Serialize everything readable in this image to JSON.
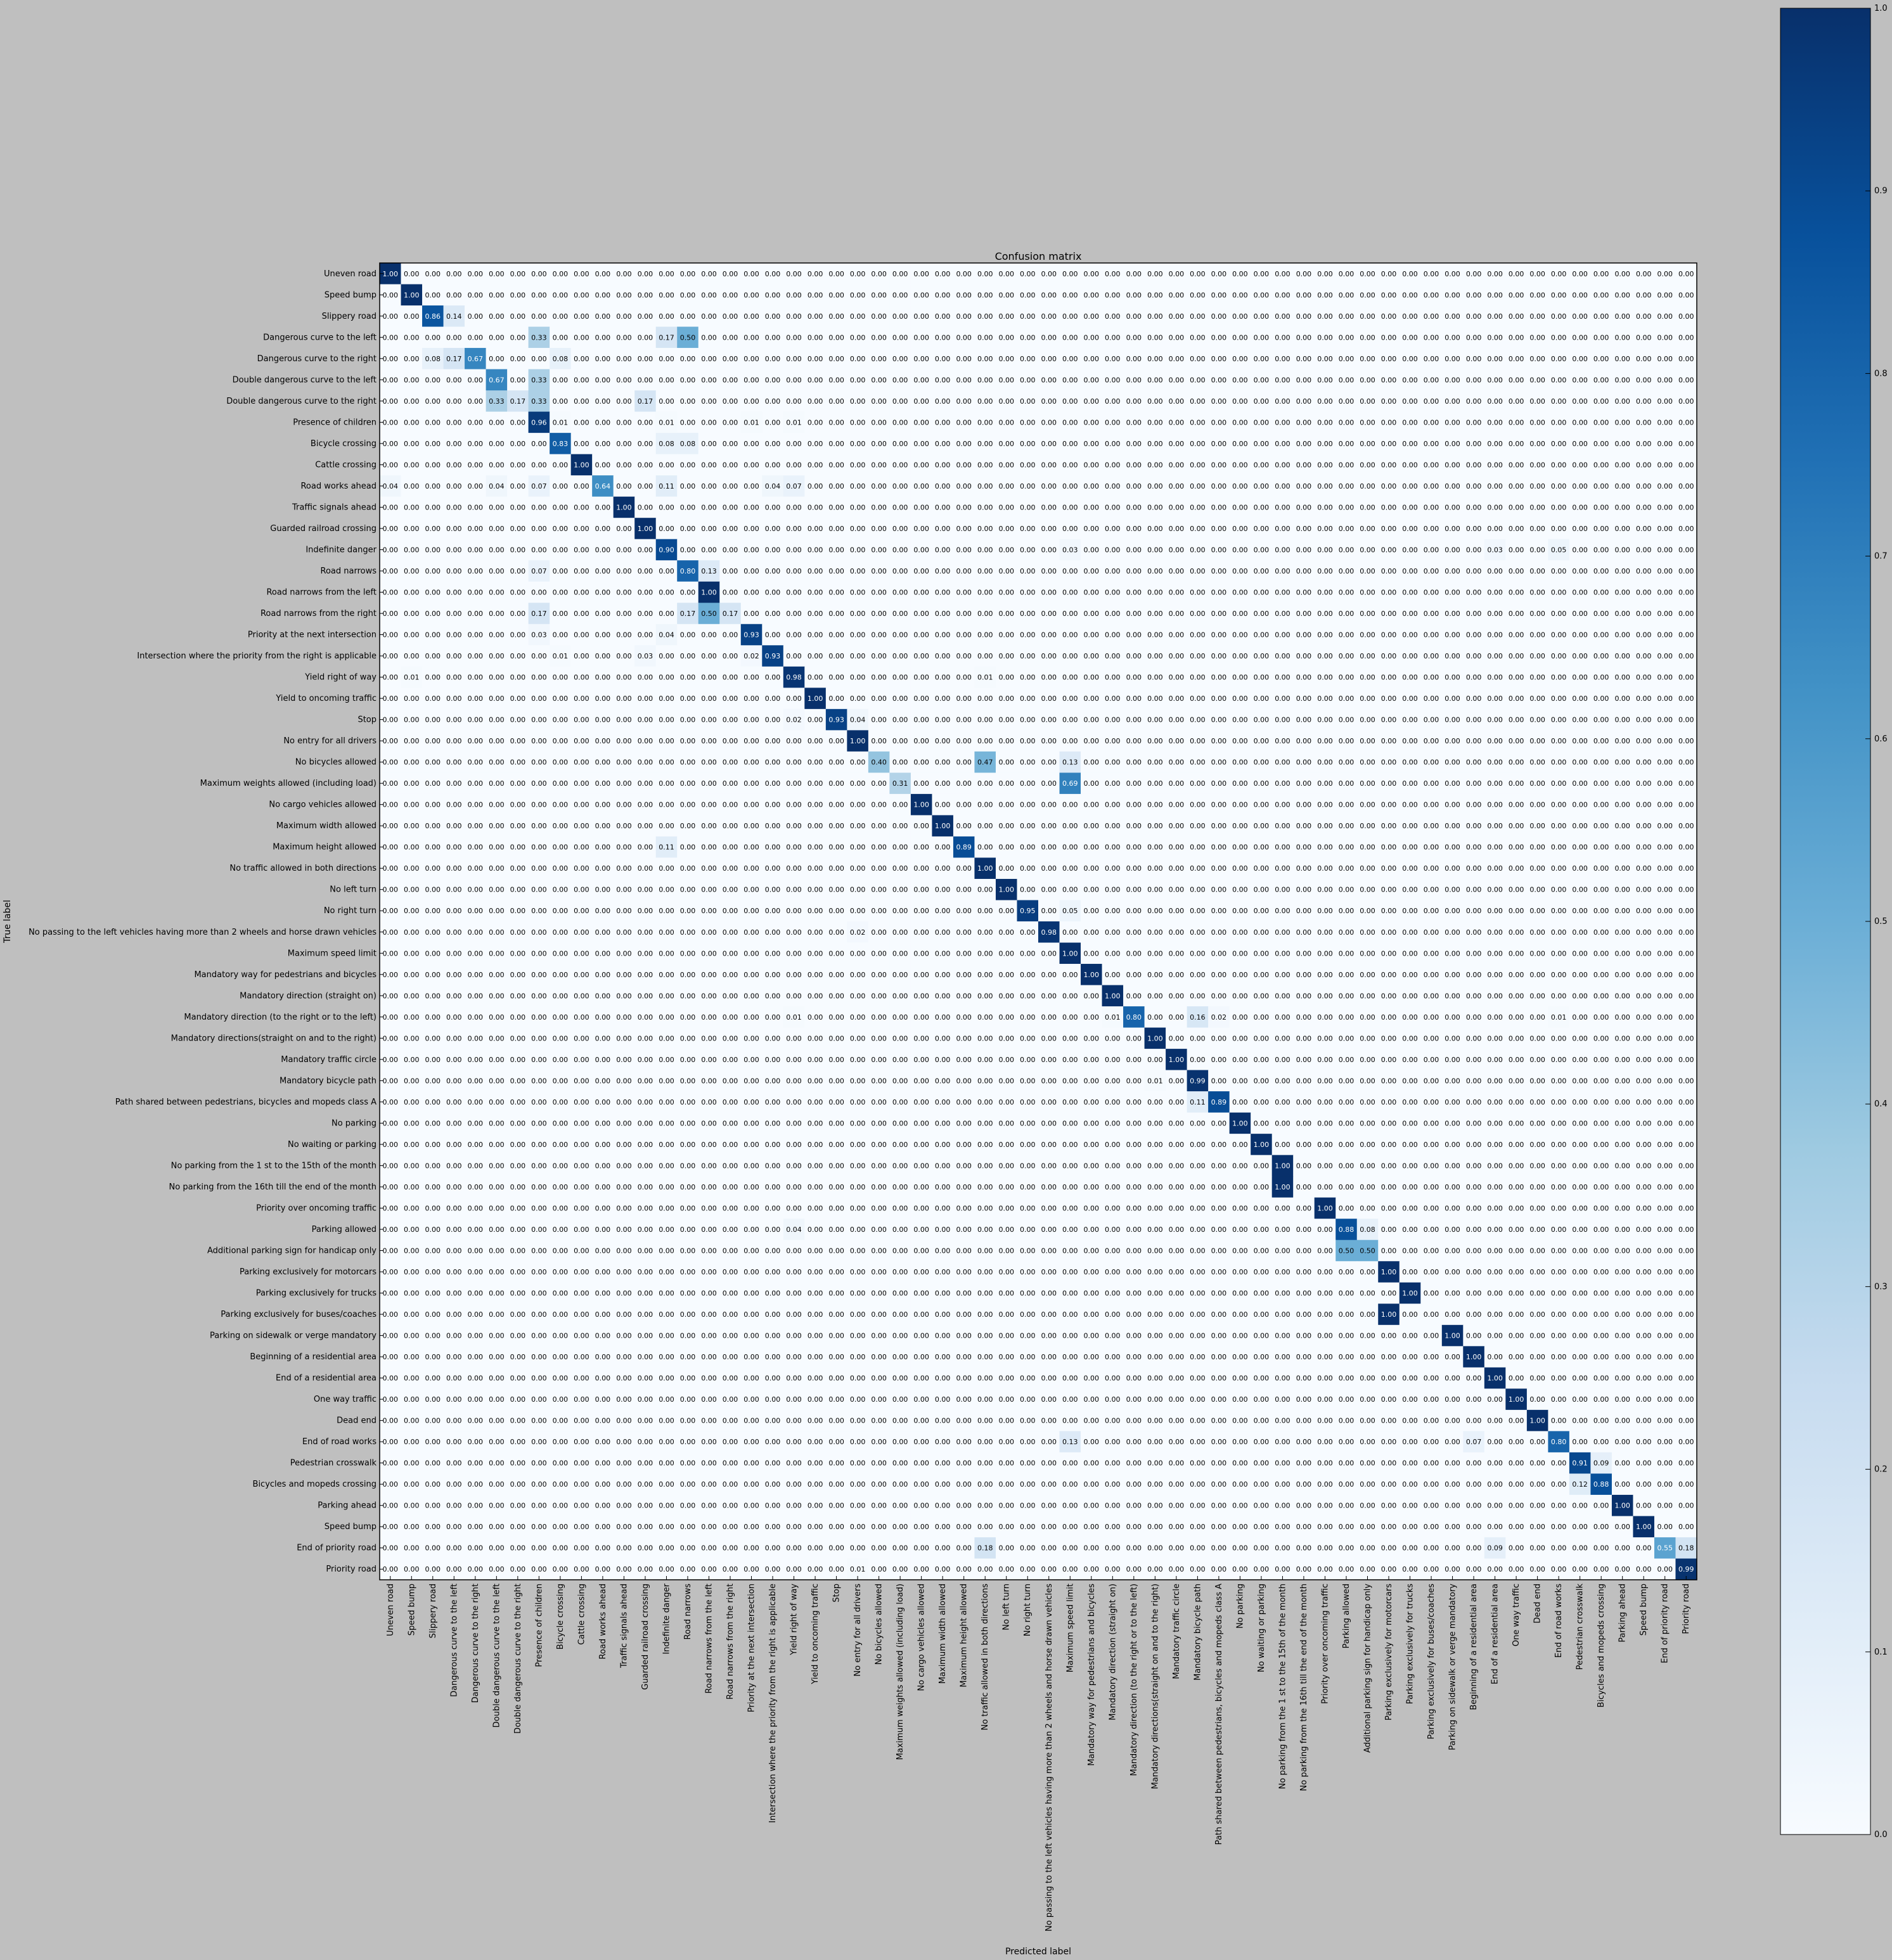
{
  "chart_data": {
    "type": "heatmap",
    "title": "Confusion matrix",
    "xlabel": "Predicted label",
    "ylabel": "True label",
    "value_range": [
      0,
      1
    ],
    "colormap": "Blues",
    "value_format": "0.00",
    "colorbar_ticks": [
      "0.0",
      "0.1",
      "0.2",
      "0.3",
      "0.4",
      "0.5",
      "0.6",
      "0.7",
      "0.8",
      "0.9",
      "1.0"
    ],
    "labels": [
      "Uneven road",
      "Speed bump",
      "Slippery road",
      "Dangerous curve to the left",
      "Dangerous curve to the right",
      "Double dangerous curve to the left",
      "Double dangerous curve to the right",
      "Presence of children",
      "Bicycle crossing",
      "Cattle crossing",
      "Road works ahead",
      "Traffic signals ahead",
      "Guarded railroad crossing",
      "Indefinite danger",
      "Road narrows",
      "Road narrows from the left",
      "Road narrows from the right",
      "Priority at the next intersection",
      "Intersection where the priority from the right is applicable",
      "Yield right of way",
      "Yield to oncoming traffic",
      "Stop",
      "No entry for all drivers",
      "No bicycles allowed",
      "Maximum weights allowed (including load)",
      "No cargo vehicles allowed",
      "Maximum width allowed",
      "Maximum height allowed",
      "No traffic allowed in both directions",
      "No left turn",
      "No right turn",
      "No passing to the left vehicles having more than 2 wheels and horse drawn vehicles",
      "Maximum speed limit",
      "Mandatory way for pedestrians and bicycles",
      "Mandatory direction (straight on)",
      "Mandatory direction (to the right or to the left)",
      "Mandatory directions(straight on and to the right)",
      "Mandatory traffic circle",
      "Mandatory bicycle path",
      "Path shared between pedestrians, bicycles and mopeds class A",
      "No parking",
      "No waiting or parking",
      "No parking from the 1 st to the 15th of the month",
      "No parking from the 16th till the end of the month",
      "Priority over oncoming traffic",
      "Parking allowed",
      "Additional parking sign for handicap only",
      "Parking exclusively for motorcars",
      "Parking exclusively for trucks",
      "Parking exclusively for buses/coaches",
      "Parking on sidewalk or verge mandatory",
      "Beginning of a residential area",
      "End of a residential area",
      "One way traffic",
      "Dead end",
      "End of road works",
      "Pedestrian crosswalk",
      "Bicycles and mopeds crossing",
      "Parking ahead",
      "Speed bump",
      "End of priority road",
      "Priority road"
    ],
    "cells": [
      [
        0,
        0,
        1.0
      ],
      [
        1,
        1,
        1.0
      ],
      [
        2,
        2,
        0.86
      ],
      [
        2,
        3,
        0.14
      ],
      [
        3,
        7,
        0.33
      ],
      [
        3,
        13,
        0.17
      ],
      [
        3,
        14,
        0.5
      ],
      [
        4,
        2,
        0.08
      ],
      [
        4,
        3,
        0.17
      ],
      [
        4,
        4,
        0.67
      ],
      [
        4,
        8,
        0.08
      ],
      [
        5,
        5,
        0.67
      ],
      [
        5,
        7,
        0.33
      ],
      [
        6,
        5,
        0.33
      ],
      [
        6,
        6,
        0.17
      ],
      [
        6,
        7,
        0.33
      ],
      [
        6,
        12,
        0.17
      ],
      [
        7,
        7,
        0.96
      ],
      [
        7,
        8,
        0.01
      ],
      [
        7,
        13,
        0.01
      ],
      [
        7,
        17,
        0.01
      ],
      [
        7,
        19,
        0.01
      ],
      [
        8,
        8,
        0.83
      ],
      [
        8,
        13,
        0.08
      ],
      [
        8,
        14,
        0.08
      ],
      [
        9,
        9,
        1.0
      ],
      [
        10,
        0,
        0.04
      ],
      [
        10,
        5,
        0.04
      ],
      [
        10,
        7,
        0.07
      ],
      [
        10,
        10,
        0.64
      ],
      [
        10,
        13,
        0.11
      ],
      [
        10,
        18,
        0.04
      ],
      [
        10,
        19,
        0.07
      ],
      [
        11,
        11,
        1.0
      ],
      [
        12,
        12,
        1.0
      ],
      [
        13,
        13,
        0.9
      ],
      [
        13,
        32,
        0.03
      ],
      [
        13,
        52,
        0.03
      ],
      [
        13,
        55,
        0.05
      ],
      [
        14,
        7,
        0.07
      ],
      [
        14,
        14,
        0.8
      ],
      [
        14,
        15,
        0.13
      ],
      [
        15,
        15,
        1.0
      ],
      [
        16,
        7,
        0.17
      ],
      [
        16,
        14,
        0.17
      ],
      [
        16,
        15,
        0.5
      ],
      [
        16,
        16,
        0.17
      ],
      [
        17,
        7,
        0.03
      ],
      [
        17,
        13,
        0.04
      ],
      [
        17,
        17,
        0.93
      ],
      [
        18,
        8,
        0.01
      ],
      [
        18,
        12,
        0.03
      ],
      [
        18,
        17,
        0.02
      ],
      [
        18,
        18,
        0.93
      ],
      [
        19,
        1,
        0.01
      ],
      [
        19,
        19,
        0.98
      ],
      [
        19,
        28,
        0.01
      ],
      [
        20,
        20,
        1.0
      ],
      [
        21,
        19,
        0.02
      ],
      [
        21,
        21,
        0.93
      ],
      [
        21,
        22,
        0.04
      ],
      [
        22,
        22,
        1.0
      ],
      [
        23,
        23,
        0.4
      ],
      [
        23,
        28,
        0.47
      ],
      [
        23,
        32,
        0.13
      ],
      [
        24,
        24,
        0.31
      ],
      [
        24,
        32,
        0.69
      ],
      [
        25,
        25,
        1.0
      ],
      [
        26,
        26,
        1.0
      ],
      [
        27,
        13,
        0.11
      ],
      [
        27,
        27,
        0.89
      ],
      [
        28,
        28,
        1.0
      ],
      [
        29,
        29,
        1.0
      ],
      [
        30,
        30,
        0.95
      ],
      [
        30,
        32,
        0.05
      ],
      [
        31,
        22,
        0.02
      ],
      [
        31,
        31,
        0.98
      ],
      [
        32,
        32,
        1.0
      ],
      [
        33,
        33,
        1.0
      ],
      [
        34,
        34,
        1.0
      ],
      [
        35,
        19,
        0.01
      ],
      [
        35,
        34,
        0.01
      ],
      [
        35,
        35,
        0.8
      ],
      [
        35,
        38,
        0.16
      ],
      [
        35,
        39,
        0.02
      ],
      [
        35,
        55,
        0.01
      ],
      [
        36,
        36,
        1.0
      ],
      [
        37,
        37,
        1.0
      ],
      [
        38,
        36,
        0.01
      ],
      [
        38,
        38,
        0.99
      ],
      [
        39,
        38,
        0.11
      ],
      [
        39,
        39,
        0.89
      ],
      [
        40,
        40,
        1.0
      ],
      [
        41,
        41,
        1.0
      ],
      [
        42,
        42,
        1.0
      ],
      [
        43,
        42,
        1.0
      ],
      [
        44,
        44,
        1.0
      ],
      [
        45,
        19,
        0.04
      ],
      [
        45,
        45,
        0.88
      ],
      [
        45,
        46,
        0.08
      ],
      [
        46,
        45,
        0.5
      ],
      [
        46,
        46,
        0.5
      ],
      [
        47,
        47,
        1.0
      ],
      [
        48,
        48,
        1.0
      ],
      [
        49,
        47,
        1.0
      ],
      [
        50,
        50,
        1.0
      ],
      [
        51,
        51,
        1.0
      ],
      [
        52,
        52,
        1.0
      ],
      [
        53,
        53,
        1.0
      ],
      [
        54,
        54,
        1.0
      ],
      [
        55,
        32,
        0.13
      ],
      [
        55,
        51,
        0.07
      ],
      [
        55,
        55,
        0.8
      ],
      [
        56,
        56,
        0.91
      ],
      [
        56,
        57,
        0.09
      ],
      [
        57,
        56,
        0.12
      ],
      [
        57,
        57,
        0.88
      ],
      [
        58,
        58,
        1.0
      ],
      [
        59,
        59,
        1.0
      ],
      [
        60,
        28,
        0.18
      ],
      [
        60,
        52,
        0.09
      ],
      [
        60,
        60,
        0.55
      ],
      [
        60,
        61,
        0.18
      ],
      [
        61,
        22,
        0.01
      ],
      [
        61,
        61,
        0.99
      ]
    ]
  }
}
